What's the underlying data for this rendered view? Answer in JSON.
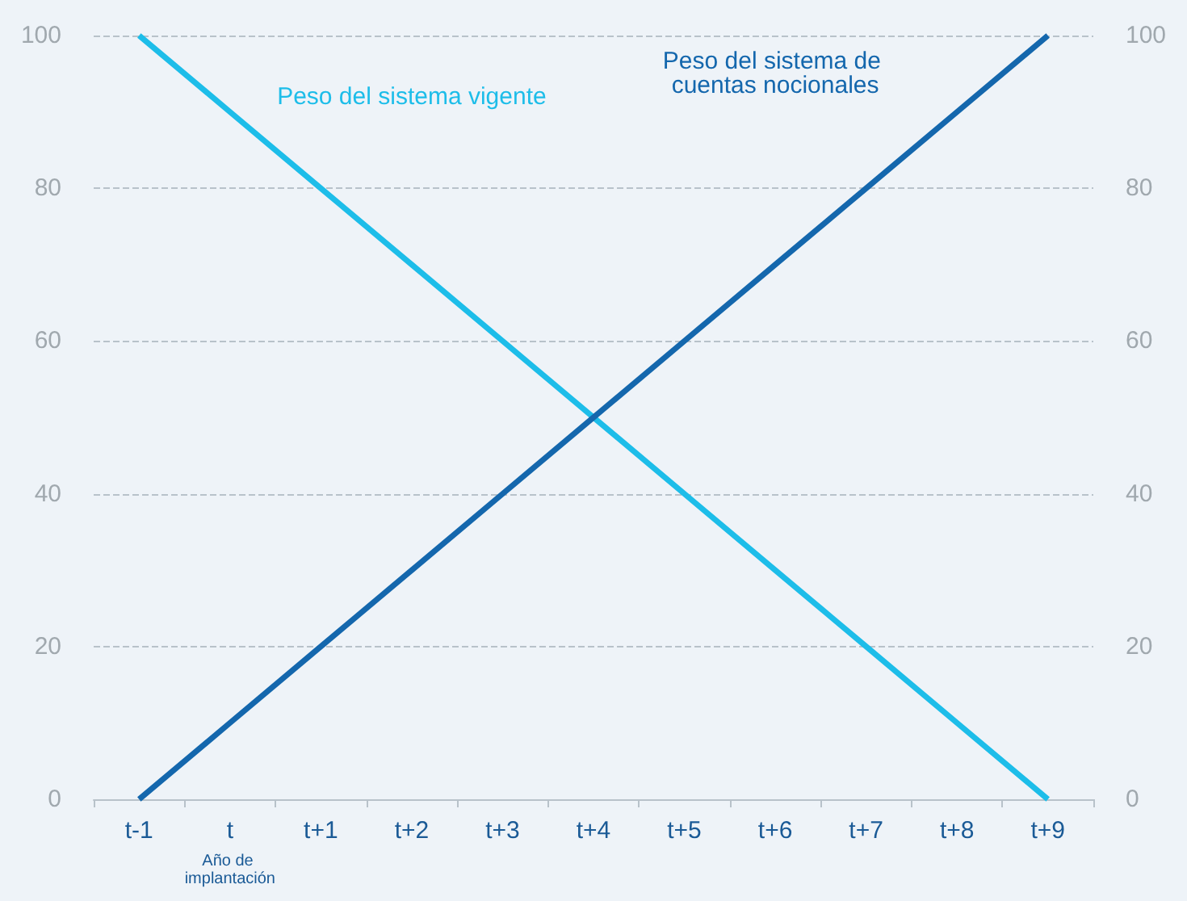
{
  "chart_data": {
    "type": "line",
    "categories": [
      "t-1",
      "t",
      "t+1",
      "t+2",
      "t+3",
      "t+4",
      "t+5",
      "t+6",
      "t+7",
      "t+8",
      "t+9"
    ],
    "series": [
      {
        "name": "Peso del sistema vigente",
        "color": "#1dbde9",
        "values": [
          100,
          90,
          80,
          70,
          60,
          50,
          40,
          30,
          20,
          10,
          0
        ]
      },
      {
        "name": "Peso del sistema de cuentas nocionales",
        "color": "#1467ad",
        "values": [
          0,
          10,
          20,
          30,
          40,
          50,
          60,
          70,
          80,
          90,
          100
        ]
      }
    ],
    "ylim": [
      0,
      100
    ],
    "yticks": [
      0,
      20,
      40,
      60,
      80,
      100
    ],
    "y2lim": [
      0,
      100
    ],
    "y2ticks": [
      0,
      20,
      40,
      60,
      80,
      100
    ],
    "grid": "y",
    "legend": false,
    "marker": "none",
    "line_style": "solid",
    "annotations": [
      "Año de implantación"
    ]
  }
}
